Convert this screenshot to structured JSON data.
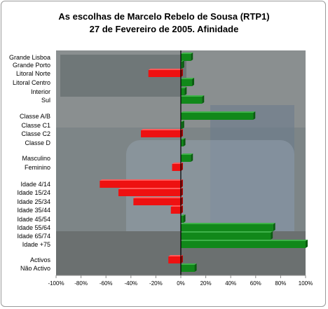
{
  "chart_data": {
    "type": "bar",
    "orientation": "horizontal",
    "title": "As escolhas de Marcelo Rebelo de Sousa (RTP1)",
    "subtitle": "27 de Fevereiro de 2005. Afinidade",
    "xlabel": "",
    "ylabel": "",
    "xlim": [
      -100,
      100
    ],
    "x_ticks": [
      "-100%",
      "-80%",
      "-60%",
      "-40%",
      "-20%",
      "0%",
      "20%",
      "40%",
      "60%",
      "80%",
      "100%"
    ],
    "grid": false,
    "legend": "none",
    "background": "photo of TV title card reading 'as escolhas de MARCELO REBELO DE SOUSA'",
    "colors": {
      "positive": "#11881a",
      "negative": "#ee1111"
    },
    "categories": [
      {
        "label": "Grande Lisboa",
        "value": 8
      },
      {
        "label": "Grande Porto",
        "value": 1
      },
      {
        "label": "Litoral Norte",
        "value": -26
      },
      {
        "label": "Litoral Centro",
        "value": 9
      },
      {
        "label": "Interior",
        "value": 3
      },
      {
        "label": "Sul",
        "value": 17
      },
      {
        "label": "Classe A/B",
        "value": 58
      },
      {
        "label": "Classe C1",
        "value": 1
      },
      {
        "label": "Classe C2",
        "value": -32
      },
      {
        "label": "Classe D",
        "value": 2
      },
      {
        "label": "Masculino",
        "value": 8
      },
      {
        "label": "Feminino",
        "value": -7
      },
      {
        "label": "Idade 4/14",
        "value": -65
      },
      {
        "label": "Idade 15/24",
        "value": -50
      },
      {
        "label": "Idade 25/34",
        "value": -38
      },
      {
        "label": "Idade 35/44",
        "value": -8
      },
      {
        "label": "Idade 45/54",
        "value": 2
      },
      {
        "label": "Idade 55/64",
        "value": 74
      },
      {
        "label": "Idade 65/74",
        "value": 72
      },
      {
        "label": "Idade +75",
        "value": 100
      },
      {
        "label": "Activos",
        "value": -10
      },
      {
        "label": "Não Activo",
        "value": 11
      }
    ]
  }
}
